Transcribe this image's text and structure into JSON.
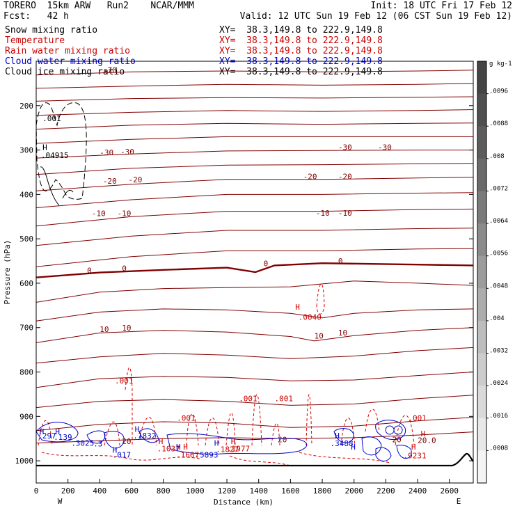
{
  "header": {
    "model": "TORERO  15km ARW   Run2    NCAR/MMM",
    "init": "Init: 18 UTC Fri 17 Feb 12",
    "fcst": "Fcst:   42 h",
    "valid": "Valid: 12 UTC Sun 19 Feb 12 (06 CST Sun 19 Feb 12)"
  },
  "fields": [
    {
      "name": "Snow mixing ratio",
      "xy": "XY=  38.3,149.8 to 222.9,149.8",
      "color": "#000000"
    },
    {
      "name": "Temperature",
      "xy": "XY=  38.3,149.8 to 222.9,149.8",
      "color": "#cc0000"
    },
    {
      "name": "Rain water mixing ratio",
      "xy": "XY=  38.3,149.8 to 222.9,149.8",
      "color": "#cc0000"
    },
    {
      "name": "Cloud water mixing ratio",
      "xy": "XY=  38.3,149.8 to 222.9,149.8",
      "color": "#0000cc"
    },
    {
      "name": "Cloud ice mixing ratio",
      "xy": "XY=  38.3,149.8 to 222.9,149.8",
      "color": "#000000"
    }
  ],
  "chart_data": {
    "type": "contour",
    "xlabel": "Distance (km)",
    "ylabel": "Pressure (hPa)",
    "xlim": [
      0,
      2750
    ],
    "ylim": [
      1050,
      100
    ],
    "x_ticks": [
      "0",
      "200",
      "400",
      "600",
      "800",
      "1000",
      "1200",
      "1400",
      "1600",
      "1800",
      "2000",
      "2200",
      "2400",
      "2600"
    ],
    "y_ticks": [
      "200",
      "300",
      "400",
      "500",
      "600",
      "700",
      "800",
      "900",
      "1000"
    ],
    "y_tick_values": [
      200,
      300,
      400,
      500,
      600,
      700,
      800,
      900,
      1000
    ],
    "endpoints": {
      "left": "W",
      "right": "E"
    },
    "colorbar": {
      "unit": "g kg-1",
      "labels": [
        ".0096",
        ".0088",
        ".008",
        ".0072",
        ".0064",
        ".0056",
        ".0048",
        ".004",
        ".0032",
        ".0024",
        ".0016",
        ".0008"
      ],
      "colors": [
        "#444444",
        "#4f4f4f",
        "#5c5c5c",
        "#6a6a6a",
        "#7a7a7a",
        "#8b8b8b",
        "#9c9c9c",
        "#adadad",
        "#bdbdbd",
        "#cccccc",
        "#dadada",
        "#e8e8e8",
        "#f4f4f4"
      ]
    },
    "isotherms": [
      {
        "p": [
          [
            0,
            131
          ],
          [
            600,
            124
          ],
          [
            1200,
            122
          ],
          [
            1800,
            124
          ],
          [
            2400,
            122
          ],
          [
            2750,
            120
          ]
        ]
      },
      {
        "p": [
          [
            0,
            161
          ],
          [
            600,
            156
          ],
          [
            1200,
            152
          ],
          [
            1800,
            154
          ],
          [
            2400,
            152
          ],
          [
            2750,
            150
          ]
        ]
      },
      {
        "p": [
          [
            0,
            190
          ],
          [
            600,
            184
          ],
          [
            1200,
            182
          ],
          [
            1800,
            183
          ],
          [
            2400,
            181
          ],
          [
            2750,
            180
          ]
        ]
      },
      {
        "p": [
          [
            0,
            222
          ],
          [
            600,
            215
          ],
          [
            1200,
            211
          ],
          [
            1800,
            213
          ],
          [
            2400,
            211
          ],
          [
            2750,
            209
          ]
        ]
      },
      {
        "p": [
          [
            0,
            253
          ],
          [
            600,
            244
          ],
          [
            1200,
            240
          ],
          [
            1800,
            242
          ],
          [
            2400,
            240
          ],
          [
            2750,
            239
          ]
        ]
      },
      {
        "p": [
          [
            0,
            285
          ],
          [
            600,
            276
          ],
          [
            1200,
            270
          ],
          [
            1800,
            270
          ],
          [
            2400,
            270
          ],
          [
            2750,
            270
          ]
        ]
      },
      {
        "p": [
          [
            0,
            318
          ],
          [
            600,
            309
          ],
          [
            1200,
            302
          ],
          [
            1800,
            301
          ],
          [
            2400,
            300
          ],
          [
            2750,
            300
          ]
        ]
      },
      {
        "p": [
          [
            0,
            355
          ],
          [
            600,
            341
          ],
          [
            1200,
            334
          ],
          [
            1800,
            333
          ],
          [
            2400,
            331
          ],
          [
            2750,
            330
          ]
        ]
      },
      {
        "p": [
          [
            0,
            392
          ],
          [
            600,
            377
          ],
          [
            1200,
            366
          ],
          [
            1800,
            366
          ],
          [
            2400,
            363
          ],
          [
            2750,
            361
          ]
        ]
      },
      {
        "p": [
          [
            0,
            430
          ],
          [
            600,
            412
          ],
          [
            1200,
            400
          ],
          [
            1800,
            400
          ],
          [
            2400,
            397
          ],
          [
            2750,
            396
          ]
        ]
      },
      {
        "p": [
          [
            0,
            471
          ],
          [
            600,
            450
          ],
          [
            1200,
            438
          ],
          [
            1800,
            438
          ],
          [
            2400,
            434
          ],
          [
            2750,
            433
          ]
        ]
      },
      {
        "p": [
          [
            0,
            515
          ],
          [
            600,
            494
          ],
          [
            1200,
            481
          ],
          [
            1800,
            481
          ],
          [
            2400,
            477
          ],
          [
            2750,
            476
          ]
        ]
      },
      {
        "p": [
          [
            0,
            563
          ],
          [
            600,
            540
          ],
          [
            1200,
            527
          ],
          [
            1800,
            527
          ],
          [
            2400,
            523
          ],
          [
            2750,
            522
          ]
        ]
      },
      {
        "p": [
          [
            0,
            587
          ],
          [
            400,
            576
          ],
          [
            800,
            570
          ],
          [
            1200,
            565
          ],
          [
            1380,
            575
          ],
          [
            1500,
            560
          ],
          [
            1800,
            555
          ],
          [
            2400,
            558
          ],
          [
            2750,
            560
          ]
        ],
        "bold": true
      },
      {
        "p": [
          [
            0,
            643
          ],
          [
            400,
            620
          ],
          [
            800,
            612
          ],
          [
            1200,
            610
          ],
          [
            1600,
            608
          ],
          [
            2000,
            595
          ],
          [
            2400,
            600
          ],
          [
            2750,
            605
          ]
        ]
      },
      {
        "p": [
          [
            0,
            685
          ],
          [
            400,
            665
          ],
          [
            800,
            658
          ],
          [
            1200,
            660
          ],
          [
            1600,
            668
          ],
          [
            1800,
            678
          ],
          [
            2000,
            668
          ],
          [
            2400,
            660
          ],
          [
            2750,
            658
          ]
        ]
      },
      {
        "p": [
          [
            0,
            734
          ],
          [
            400,
            712
          ],
          [
            800,
            706
          ],
          [
            1200,
            710
          ],
          [
            1600,
            720
          ],
          [
            1750,
            730
          ],
          [
            2000,
            718
          ],
          [
            2400,
            706
          ],
          [
            2750,
            700
          ]
        ]
      },
      {
        "p": [
          [
            0,
            780
          ],
          [
            400,
            766
          ],
          [
            800,
            758
          ],
          [
            1200,
            762
          ],
          [
            1600,
            770
          ],
          [
            2000,
            764
          ],
          [
            2400,
            752
          ],
          [
            2750,
            745
          ]
        ]
      },
      {
        "p": [
          [
            0,
            835
          ],
          [
            400,
            815
          ],
          [
            800,
            810
          ],
          [
            1200,
            812
          ],
          [
            1600,
            820
          ],
          [
            2000,
            818
          ],
          [
            2400,
            808
          ],
          [
            2750,
            800
          ]
        ]
      },
      {
        "p": [
          [
            0,
            880
          ],
          [
            400,
            866
          ],
          [
            800,
            862
          ],
          [
            1200,
            866
          ],
          [
            1600,
            875
          ],
          [
            2000,
            872
          ],
          [
            2400,
            860
          ],
          [
            2750,
            852
          ]
        ]
      },
      {
        "p": [
          [
            0,
            932
          ],
          [
            400,
            918
          ],
          [
            800,
            912
          ],
          [
            1200,
            915
          ],
          [
            1600,
            925
          ],
          [
            2000,
            922
          ],
          [
            2400,
            910
          ],
          [
            2750,
            902
          ]
        ]
      },
      {
        "p": [
          [
            0,
            960
          ],
          [
            400,
            955
          ],
          [
            800,
            950
          ],
          [
            1200,
            948
          ],
          [
            1600,
            950
          ],
          [
            2000,
            948
          ],
          [
            2400,
            942
          ],
          [
            2750,
            935
          ]
        ]
      }
    ],
    "temp_labels": [
      {
        "text": "-70",
        "x": 420,
        "p": 126
      },
      {
        "text": "-30",
        "x": 400,
        "p": 312
      },
      {
        "text": "-30",
        "x": 530,
        "p": 310
      },
      {
        "text": "-30",
        "x": 1900,
        "p": 300
      },
      {
        "text": "-30",
        "x": 2150,
        "p": 300
      },
      {
        "text": "-20",
        "x": 420,
        "p": 376
      },
      {
        "text": "-20",
        "x": 580,
        "p": 373
      },
      {
        "text": "-20",
        "x": 1680,
        "p": 366
      },
      {
        "text": "-20",
        "x": 1900,
        "p": 366
      },
      {
        "text": "-10",
        "x": 350,
        "p": 449
      },
      {
        "text": "-10",
        "x": 510,
        "p": 449
      },
      {
        "text": "-10",
        "x": 1760,
        "p": 448
      },
      {
        "text": "-10",
        "x": 1900,
        "p": 448
      },
      {
        "text": "0",
        "x": 320,
        "p": 577
      },
      {
        "text": "0",
        "x": 540,
        "p": 573
      },
      {
        "text": "0",
        "x": 1430,
        "p": 562
      },
      {
        "text": "0",
        "x": 1900,
        "p": 556
      },
      {
        "text": "10",
        "x": 400,
        "p": 710
      },
      {
        "text": "10",
        "x": 540,
        "p": 707
      },
      {
        "text": "10",
        "x": 1750,
        "p": 725
      },
      {
        "text": "10",
        "x": 1900,
        "p": 718
      },
      {
        "text": "20",
        "x": 540,
        "p": 962
      },
      {
        "text": "20",
        "x": 1520,
        "p": 958
      },
      {
        "text": "20",
        "x": 2240,
        "p": 958
      },
      {
        "text": "20.0",
        "x": 2400,
        "p": 960
      }
    ],
    "rain_labels": [
      {
        "text": "H",
        "x": 1630,
        "p": 660
      },
      {
        "text": ".0040",
        "x": 1650,
        "p": 682
      },
      {
        "text": ".001",
        "x": 495,
        "p": 826
      },
      {
        "text": ".001",
        "x": 1275,
        "p": 866
      },
      {
        "text": ".001",
        "x": 1500,
        "p": 866
      },
      {
        "text": ".001",
        "x": 885,
        "p": 910
      },
      {
        "text": ".001",
        "x": 2340,
        "p": 910
      },
      {
        "text": "H",
        "x": 770,
        "p": 962
      },
      {
        "text": ".1037",
        "x": 760,
        "p": 979
      },
      {
        "text": "H",
        "x": 925,
        "p": 975
      },
      {
        "text": ".1667",
        "x": 880,
        "p": 993
      },
      {
        "text": "H",
        "x": 1225,
        "p": 962
      },
      {
        "text": ".1827",
        "x": 1130,
        "p": 980
      },
      {
        "text": ".1977",
        "x": 1200,
        "p": 979
      },
      {
        "text": "H",
        "x": 2360,
        "p": 975
      },
      {
        "text": ".9231",
        "x": 2310,
        "p": 994
      },
      {
        "text": "H",
        "x": 2420,
        "p": 945
      }
    ],
    "cloud_labels": [
      {
        "text": "H",
        "x": 20,
        "p": 940
      },
      {
        "text": ".297",
        "x": 10,
        "p": 950
      },
      {
        "text": "H",
        "x": 120,
        "p": 940
      },
      {
        "text": ".139",
        "x": 110,
        "p": 953
      },
      {
        "text": ".3025",
        "x": 220,
        "p": 966
      },
      {
        "text": ".3",
        "x": 360,
        "p": 968
      },
      {
        "text": "H",
        "x": 480,
        "p": 982
      },
      {
        "text": ".017",
        "x": 480,
        "p": 993
      },
      {
        "text": "H",
        "x": 620,
        "p": 935
      },
      {
        "text": ".1832",
        "x": 610,
        "p": 950
      },
      {
        "text": "H",
        "x": 880,
        "p": 975
      },
      {
        "text": ".5893",
        "x": 1000,
        "p": 993
      },
      {
        "text": "H",
        "x": 1120,
        "p": 966
      },
      {
        "text": "H",
        "x": 1880,
        "p": 950
      },
      {
        "text": ".3488",
        "x": 1850,
        "p": 967
      },
      {
        "text": "H",
        "x": 1980,
        "p": 975
      }
    ],
    "snow_labels": [
      {
        "text": ".001",
        "x": 40,
        "p": 235
      },
      {
        "text": "H",
        "x": 40,
        "p": 300
      },
      {
        "text": ".04915",
        "x": 30,
        "p": 318
      }
    ]
  }
}
